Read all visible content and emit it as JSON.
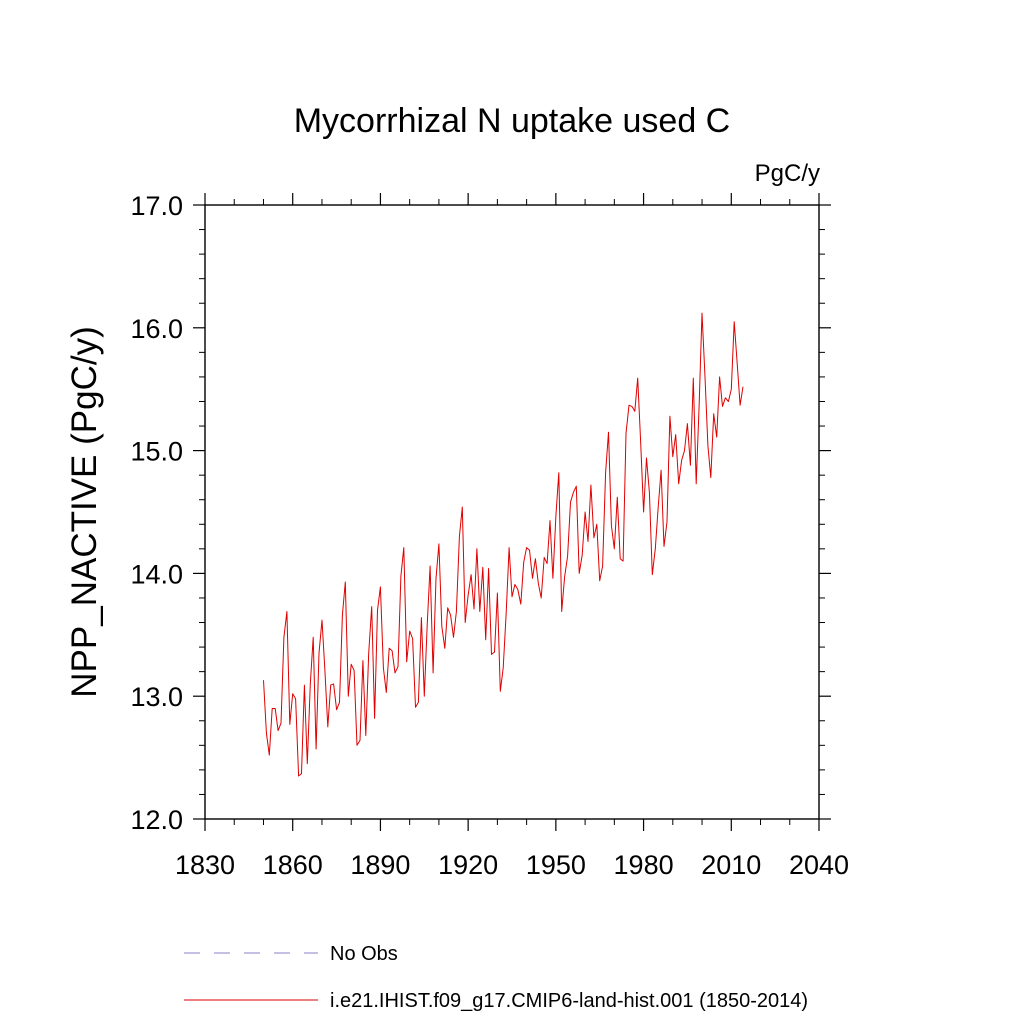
{
  "chart_data": {
    "type": "line",
    "title": "Mycorrhizal N uptake used C",
    "units_label": "PgC/y",
    "ylabel": "NPP_NACTIVE  (PgC/y)",
    "xlabel": "",
    "xlim": [
      1830,
      2040
    ],
    "ylim": [
      12.0,
      17.0
    ],
    "x_ticks": [
      1830,
      1860,
      1890,
      1920,
      1950,
      1980,
      2010,
      2040
    ],
    "x_tick_labels": [
      "1830",
      "1860",
      "1890",
      "1920",
      "1950",
      "1980",
      "2010",
      "2040"
    ],
    "y_ticks": [
      12.0,
      13.0,
      14.0,
      15.0,
      16.0,
      17.0
    ],
    "y_tick_labels": [
      "12.0",
      "13.0",
      "14.0",
      "15.0",
      "16.0",
      "17.0"
    ],
    "grid": false,
    "legend_position": "bottom",
    "legend": [
      {
        "label": "No Obs",
        "color": "#8a82c8",
        "style": "dashed"
      },
      {
        "label": "i.e21.IHIST.f09_g17.CMIP6-land-hist.001 (1850-2014)",
        "color": "#e00000",
        "style": "solid"
      }
    ],
    "series": [
      {
        "name": "i.e21.IHIST.f09_g17.CMIP6-land-hist.001 (1850-2014)",
        "color": "#e00000",
        "x": [
          1850,
          1851,
          1852,
          1853,
          1854,
          1855,
          1856,
          1857,
          1858,
          1859,
          1860,
          1861,
          1862,
          1863,
          1864,
          1865,
          1866,
          1867,
          1868,
          1869,
          1870,
          1871,
          1872,
          1873,
          1874,
          1875,
          1876,
          1877,
          1878,
          1879,
          1880,
          1881,
          1882,
          1883,
          1884,
          1885,
          1886,
          1887,
          1888,
          1889,
          1890,
          1891,
          1892,
          1893,
          1894,
          1895,
          1896,
          1897,
          1898,
          1899,
          1900,
          1901,
          1902,
          1903,
          1904,
          1905,
          1906,
          1907,
          1908,
          1909,
          1910,
          1911,
          1912,
          1913,
          1914,
          1915,
          1916,
          1917,
          1918,
          1919,
          1920,
          1921,
          1922,
          1923,
          1924,
          1925,
          1926,
          1927,
          1928,
          1929,
          1930,
          1931,
          1932,
          1933,
          1934,
          1935,
          1936,
          1937,
          1938,
          1939,
          1940,
          1941,
          1942,
          1943,
          1944,
          1945,
          1946,
          1947,
          1948,
          1949,
          1950,
          1951,
          1952,
          1953,
          1954,
          1955,
          1956,
          1957,
          1958,
          1959,
          1960,
          1961,
          1962,
          1963,
          1964,
          1965,
          1966,
          1967,
          1968,
          1969,
          1970,
          1971,
          1972,
          1973,
          1974,
          1975,
          1976,
          1977,
          1978,
          1979,
          1980,
          1981,
          1982,
          1983,
          1984,
          1985,
          1986,
          1987,
          1988,
          1989,
          1990,
          1991,
          1992,
          1993,
          1994,
          1995,
          1996,
          1997,
          1998,
          1999,
          2000,
          2001,
          2002,
          2003,
          2004,
          2005,
          2006,
          2007,
          2008,
          2009,
          2010,
          2011,
          2012,
          2013,
          2014
        ],
        "values": [
          13.13,
          12.7,
          12.52,
          12.9,
          12.9,
          12.72,
          12.78,
          13.48,
          13.69,
          12.77,
          13.02,
          12.98,
          12.35,
          12.37,
          13.09,
          12.45,
          13.1,
          13.48,
          12.57,
          13.35,
          13.62,
          13.21,
          12.75,
          13.09,
          13.1,
          12.89,
          12.95,
          13.66,
          13.93,
          13.0,
          13.26,
          13.21,
          12.6,
          12.64,
          13.29,
          12.68,
          13.35,
          13.73,
          12.82,
          13.7,
          13.89,
          13.23,
          13.03,
          13.39,
          13.37,
          13.19,
          13.24,
          13.98,
          14.21,
          13.28,
          13.53,
          13.47,
          12.91,
          12.95,
          13.64,
          13.0,
          13.58,
          14.06,
          13.19,
          13.96,
          14.24,
          13.57,
          13.39,
          13.72,
          13.66,
          13.48,
          13.69,
          14.3,
          14.54,
          13.6,
          13.82,
          13.99,
          13.71,
          14.2,
          13.69,
          14.05,
          13.46,
          14.04,
          13.34,
          13.36,
          13.84,
          13.04,
          13.23,
          13.68,
          14.21,
          13.81,
          13.91,
          13.87,
          13.75,
          14.09,
          14.21,
          14.19,
          13.96,
          14.12,
          13.92,
          13.8,
          14.13,
          14.08,
          14.43,
          13.96,
          14.47,
          14.82,
          13.69,
          13.97,
          14.14,
          14.58,
          14.66,
          14.71,
          14.0,
          14.15,
          14.5,
          14.26,
          14.72,
          14.29,
          14.4,
          13.94,
          14.06,
          14.82,
          15.15,
          14.39,
          14.2,
          14.62,
          14.12,
          14.1,
          15.14,
          15.37,
          15.36,
          15.32,
          15.59,
          15.08,
          14.5,
          14.94,
          14.66,
          13.99,
          14.2,
          14.54,
          14.84,
          14.22,
          14.42,
          15.28,
          14.95,
          15.13,
          14.73,
          14.92,
          15.0,
          15.22,
          14.88,
          15.59,
          14.73,
          15.36,
          16.12,
          15.6,
          15.04,
          14.78,
          15.3,
          15.11,
          15.6,
          15.36,
          15.43,
          15.4,
          15.5,
          16.05,
          15.72,
          15.37,
          15.52
        ]
      }
    ]
  }
}
